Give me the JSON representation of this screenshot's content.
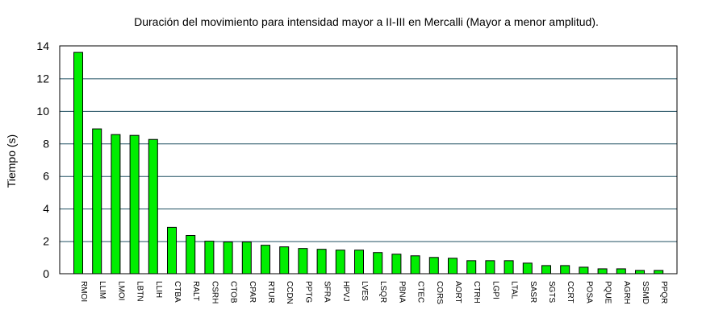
{
  "chart_data": {
    "type": "bar",
    "title": "Duración del movimiento para intensidad mayor a II-III en Mercalli (Mayor a menor amplitud).",
    "xlabel": "",
    "ylabel": "Tiempo (s)",
    "ylim": [
      0,
      14
    ],
    "yticks": [
      "0",
      "2",
      "4",
      "6",
      "8",
      "10",
      "12",
      "14"
    ],
    "grid": "horizontal",
    "bar_color": "#00ee00",
    "grid_color": "#1f4f60",
    "categories": [
      "RMOI",
      "LLIM",
      "LMOI",
      "LBTN",
      "LLIH",
      "CTBA",
      "RALT",
      "CSRH",
      "CTOB",
      "CPAR",
      "RTUR",
      "CCDN",
      "PPTG",
      "SFRA",
      "HPVJ",
      "LVES",
      "LSQR",
      "PBNA",
      "CTEC",
      "CORS",
      "AORT",
      "CTRH",
      "LGPI",
      "LTAL",
      "SASR",
      "SGTS",
      "CCRT",
      "POSA",
      "PQUE",
      "AGRH",
      "SSMD",
      "PPQR"
    ],
    "values": [
      13.6,
      8.9,
      8.55,
      8.5,
      8.25,
      2.85,
      2.35,
      2.0,
      1.95,
      1.95,
      1.75,
      1.65,
      1.55,
      1.5,
      1.45,
      1.45,
      1.3,
      1.2,
      1.1,
      1.0,
      0.95,
      0.8,
      0.8,
      0.8,
      0.65,
      0.5,
      0.5,
      0.4,
      0.3,
      0.3,
      0.2,
      0.2
    ]
  }
}
